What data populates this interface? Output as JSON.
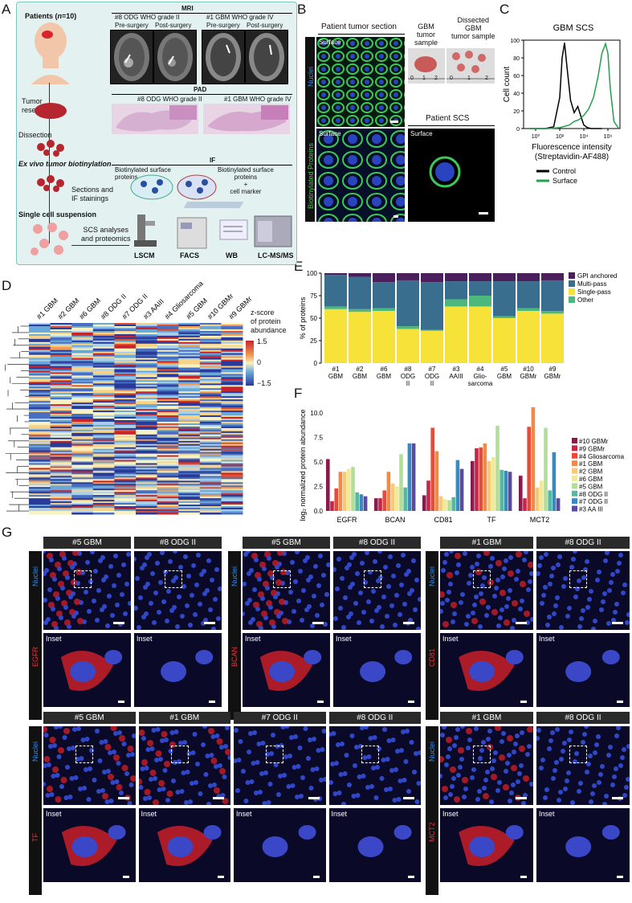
{
  "panels": {
    "A": "A",
    "B": "B",
    "C": "C",
    "D": "D",
    "E": "E",
    "F": "F",
    "G": "G"
  },
  "panelA": {
    "patients": "Patients (",
    "n": "n",
    "patients_end": "=10)",
    "mri": "MRI",
    "mri_left": "#8 ODG WHO grade II",
    "mri_right": "#1 GBM WHO grade IV",
    "pre": "Pre-surgery",
    "post": "Post-surgery",
    "tumor_resection": "Tumor\nresection",
    "pad": "PAD",
    "pad_left": "#8 ODG WHO grade II",
    "pad_right": "#1 GBM WHO grade IV",
    "dissection": "Dissection",
    "biotin": "Ex vivo tumor biotinylation",
    "if": "IF",
    "bio_surface1": "Biotinylated surface\nproteins",
    "bio_surface2": "Biotinylated surface\nproteins\n+\ncell marker",
    "sections": "Sections and\nIF stainings",
    "single_cell": "Single cell suspension",
    "scs": "SCS analyses\nand proteomics",
    "lscm": "LSCM",
    "facs": "FACS",
    "wb": "WB",
    "lcms": "LC-MS/MS"
  },
  "panelB": {
    "section_title": "Patient tumor section",
    "surface": "Surface",
    "nuclei": "Nuclei",
    "biotinylated": "Biotinylated Proteins",
    "gbm_sample": "GBM\ntumor\nsample",
    "dissected": "Dissected\nGBM\ntumor sample",
    "patient_scs": "Patient SCS",
    "ruler_ticks": [
      "0",
      "1",
      "2"
    ]
  },
  "chart_data": [
    {
      "id": "C",
      "type": "line",
      "title": "GBM SCS",
      "xlabel": "Fluorescence intensity\n(Streptavidin-AF488)",
      "ylabel": "Cell count",
      "yticks": [
        "0",
        "20",
        "40",
        "60",
        "80",
        "100"
      ],
      "xticks": [
        "10⁰",
        "10²",
        "10⁴",
        "10⁶"
      ],
      "x_log10_range": [
        -1,
        7
      ],
      "y_range": [
        0,
        100
      ],
      "series": [
        {
          "name": "Control",
          "color": "#000000",
          "x_log10": [
            -0.5,
            0.8,
            1.5,
            2.0,
            2.2,
            2.4,
            2.6,
            2.9,
            3.2,
            3.5,
            3.8,
            4.0,
            4.3,
            4.6,
            5.0,
            5.5
          ],
          "y": [
            0,
            0,
            2,
            35,
            80,
            97,
            70,
            32,
            18,
            25,
            12,
            4,
            1,
            0,
            0,
            0
          ]
        },
        {
          "name": "Surface",
          "color": "#22a04a",
          "x_log10": [
            -0.5,
            1.0,
            2.0,
            2.8,
            3.2,
            3.6,
            4.0,
            4.4,
            4.8,
            5.2,
            5.5,
            5.8,
            6.0,
            6.2,
            6.5,
            6.9
          ],
          "y": [
            0,
            0,
            1,
            4,
            8,
            10,
            15,
            22,
            35,
            60,
            85,
            96,
            85,
            45,
            8,
            0
          ]
        }
      ],
      "legend": [
        "Control",
        "Surface"
      ]
    },
    {
      "id": "E",
      "type": "bar",
      "stacked": true,
      "ylabel": "% of proteins",
      "yticks": [
        "0",
        "25",
        "50",
        "75",
        "100"
      ],
      "ylim": [
        0,
        100
      ],
      "categories": [
        "#1\nGBM",
        "#2\nGBM",
        "#6\nGBM",
        "#8\nODG\nII",
        "#7\nODG\nII",
        "#3\nAAIII",
        "#4\nGlio-\nsarcoma",
        "#5\nGBM",
        "#10\nGBMr",
        "#9\nGBMr"
      ],
      "series": [
        {
          "name": "Single-pass",
          "color": "#f7e23a",
          "values": [
            60,
            57,
            58,
            38,
            36,
            63,
            63,
            50,
            58,
            55
          ]
        },
        {
          "name": "Other",
          "color": "#4cb87c",
          "values": [
            3,
            3,
            3,
            3,
            1,
            8,
            12,
            2,
            3,
            3
          ]
        },
        {
          "name": "Multi-pass",
          "color": "#3a6e8f",
          "values": [
            35,
            36,
            29,
            51,
            53,
            20,
            16,
            39,
            30,
            34
          ]
        },
        {
          "name": "GPI anchored",
          "color": "#4b1f5c",
          "values": [
            2,
            4,
            10,
            8,
            10,
            9,
            9,
            9,
            9,
            8
          ]
        }
      ],
      "legend": [
        "GPI anchored",
        "Multi-pass",
        "Single-pass",
        "Other"
      ]
    },
    {
      "id": "F",
      "type": "bar",
      "ylabel": "log₂ normalized protein abundance",
      "yticks": [
        "0.0",
        "2.5",
        "5.0",
        "7.5",
        "10.0"
      ],
      "ylim": [
        0,
        11
      ],
      "categories": [
        "EGFR",
        "BCAN",
        "CD81",
        "TF",
        "MCT2"
      ],
      "series": [
        {
          "name": "#10 GBMr",
          "color": "#8b1a4a",
          "values": [
            5.3,
            1.3,
            1.6,
            5.1,
            3.6
          ]
        },
        {
          "name": "#9 GBMr",
          "color": "#c2264a",
          "values": [
            1.0,
            1.3,
            3.1,
            6.4,
            1.3
          ]
        },
        {
          "name": "#4 Gliosarcoma",
          "color": "#e84a3a",
          "values": [
            2.3,
            2.1,
            8.5,
            6.5,
            8.6
          ]
        },
        {
          "name": "#1 GBM",
          "color": "#f08a48",
          "values": [
            4.0,
            4.0,
            6.1,
            6.9,
            10.6
          ]
        },
        {
          "name": "#2 GBM",
          "color": "#f6c878",
          "values": [
            4.0,
            2.8,
            1.5,
            5.1,
            2.4
          ]
        },
        {
          "name": "#6 GBM",
          "color": "#eeea9a",
          "values": [
            4.3,
            2.5,
            1.2,
            5.5,
            3.1
          ]
        },
        {
          "name": "#5 GBM",
          "color": "#b2de9a",
          "values": [
            4.5,
            5.8,
            1.1,
            8.7,
            8.5
          ]
        },
        {
          "name": "#8 ODG II",
          "color": "#58b89e",
          "values": [
            1.9,
            2.4,
            1.4,
            4.2,
            2.1
          ]
        },
        {
          "name": "#7 ODG II",
          "color": "#3a8ac0",
          "values": [
            1.7,
            6.9,
            5.2,
            4.1,
            6.0
          ]
        },
        {
          "name": "#3 AA III",
          "color": "#5a4aa0",
          "values": [
            1.5,
            6.9,
            4.3,
            4.0,
            1.3
          ]
        }
      ]
    }
  ],
  "panelD": {
    "columns": [
      "#1 GBM",
      "#2 GBM",
      "#6 GBM",
      "#8 ODG II",
      "#7 ODG II",
      "#3 AAIII",
      "#4 Gliosarcoma",
      "#5 GBM",
      "#10 GBMr",
      "#9 GBMr"
    ],
    "scale_title": "z-score\nof protein\nabundance",
    "scale_ticks": [
      "1.5",
      "0",
      "−1.5"
    ]
  },
  "panelG": {
    "nuclei": "Nuclei",
    "inset": "Inset",
    "groups": [
      {
        "marker": "EGFR",
        "samples": [
          "#5 GBM",
          "#8 ODG II"
        ]
      },
      {
        "marker": "BCAN",
        "samples": [
          "#5 GBM",
          "#8 ODG II"
        ]
      },
      {
        "marker": "CD81",
        "samples": [
          "#1 GBM",
          "#8 ODG II"
        ]
      },
      {
        "marker": "TF",
        "samples": [
          "#5 GBM",
          "#1 GBM",
          "#7 ODG II",
          "#8 ODG II"
        ]
      },
      {
        "marker": "MCT2",
        "samples": [
          "#1 GBM",
          "#8 ODG II"
        ]
      }
    ]
  }
}
